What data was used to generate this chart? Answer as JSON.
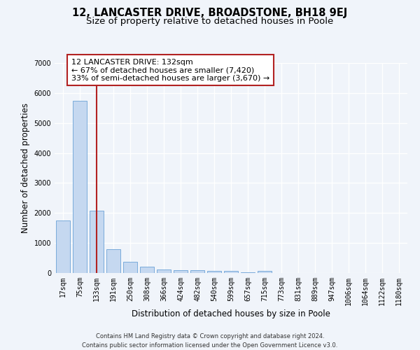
{
  "title": "12, LANCASTER DRIVE, BROADSTONE, BH18 9EJ",
  "subtitle": "Size of property relative to detached houses in Poole",
  "xlabel": "Distribution of detached houses by size in Poole",
  "ylabel": "Number of detached properties",
  "bar_labels": [
    "17sqm",
    "75sqm",
    "133sqm",
    "191sqm",
    "250sqm",
    "308sqm",
    "366sqm",
    "424sqm",
    "482sqm",
    "540sqm",
    "599sqm",
    "657sqm",
    "715sqm",
    "773sqm",
    "831sqm",
    "889sqm",
    "947sqm",
    "1006sqm",
    "1064sqm",
    "1122sqm",
    "1180sqm"
  ],
  "bar_values": [
    1750,
    5750,
    2070,
    800,
    370,
    215,
    120,
    100,
    100,
    70,
    70,
    20,
    60,
    0,
    0,
    0,
    0,
    0,
    0,
    0,
    0
  ],
  "bar_color": "#c5d8f0",
  "bar_edge_color": "#7aabdb",
  "property_line_x": 2,
  "property_line_color": "#b22222",
  "ylim": [
    0,
    7000
  ],
  "yticks": [
    0,
    1000,
    2000,
    3000,
    4000,
    5000,
    6000,
    7000
  ],
  "annotation_title": "12 LANCASTER DRIVE: 132sqm",
  "annotation_line1": "← 67% of detached houses are smaller (7,420)",
  "annotation_line2": "33% of semi-detached houses are larger (3,670) →",
  "annotation_box_color": "#b22222",
  "bg_color": "#f0f4fa",
  "footer_line1": "Contains HM Land Registry data © Crown copyright and database right 2024.",
  "footer_line2": "Contains public sector information licensed under the Open Government Licence v3.0.",
  "title_fontsize": 10.5,
  "subtitle_fontsize": 9.5,
  "axis_label_fontsize": 8.5,
  "tick_fontsize": 7,
  "annotation_fontsize": 8,
  "footer_fontsize": 6
}
